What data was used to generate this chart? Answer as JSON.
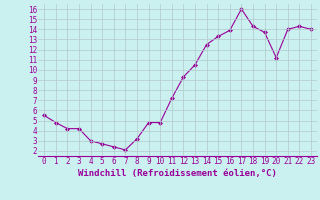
{
  "x": [
    0,
    1,
    2,
    3,
    4,
    5,
    6,
    7,
    8,
    9,
    10,
    11,
    12,
    13,
    14,
    15,
    16,
    17,
    18,
    19,
    20,
    21,
    22,
    23
  ],
  "y": [
    5.5,
    4.8,
    4.2,
    4.2,
    3.0,
    2.7,
    2.4,
    2.1,
    3.2,
    4.8,
    4.8,
    7.2,
    9.3,
    10.5,
    12.5,
    13.3,
    13.9,
    16.0,
    14.3,
    13.7,
    11.2,
    14.0,
    14.3,
    14.0
  ],
  "line_color": "#990099",
  "marker": "D",
  "marker_size": 2,
  "bg_color": "#cbf0f0",
  "grid_color": "#b0c8c8",
  "xlabel": "Windchill (Refroidissement éolien,°C)",
  "yticks": [
    2,
    3,
    4,
    5,
    6,
    7,
    8,
    9,
    10,
    11,
    12,
    13,
    14,
    15,
    16
  ],
  "xticks": [
    0,
    1,
    2,
    3,
    4,
    5,
    6,
    7,
    8,
    9,
    10,
    11,
    12,
    13,
    14,
    15,
    16,
    17,
    18,
    19,
    20,
    21,
    22,
    23
  ],
  "ylim": [
    1.5,
    16.5
  ],
  "xlim": [
    -0.5,
    23.5
  ],
  "tick_fontsize": 5.5,
  "xlabel_fontsize": 6.5
}
